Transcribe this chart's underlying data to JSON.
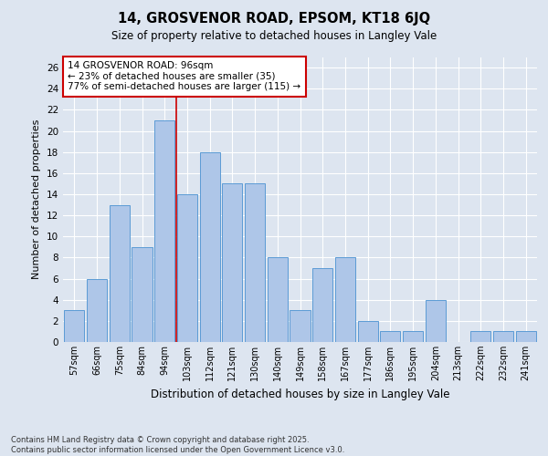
{
  "title1": "14, GROSVENOR ROAD, EPSOM, KT18 6JQ",
  "title2": "Size of property relative to detached houses in Langley Vale",
  "xlabel": "Distribution of detached houses by size in Langley Vale",
  "ylabel": "Number of detached properties",
  "categories": [
    "57sqm",
    "66sqm",
    "75sqm",
    "84sqm",
    "94sqm",
    "103sqm",
    "112sqm",
    "121sqm",
    "130sqm",
    "140sqm",
    "149sqm",
    "158sqm",
    "167sqm",
    "177sqm",
    "186sqm",
    "195sqm",
    "204sqm",
    "213sqm",
    "222sqm",
    "232sqm",
    "241sqm"
  ],
  "values": [
    3,
    6,
    13,
    9,
    21,
    14,
    18,
    15,
    15,
    8,
    3,
    7,
    8,
    2,
    1,
    1,
    4,
    0,
    1,
    1,
    1
  ],
  "bar_color": "#aec6e8",
  "bar_edge_color": "#5b9bd5",
  "vline_index": 4,
  "vline_color": "#cc0000",
  "annotation_box_text": "14 GROSVENOR ROAD: 96sqm\n← 23% of detached houses are smaller (35)\n77% of semi-detached houses are larger (115) →",
  "ylim": [
    0,
    27
  ],
  "yticks": [
    0,
    2,
    4,
    6,
    8,
    10,
    12,
    14,
    16,
    18,
    20,
    22,
    24,
    26
  ],
  "footer": "Contains HM Land Registry data © Crown copyright and database right 2025.\nContains public sector information licensed under the Open Government Licence v3.0.",
  "bg_color": "#dde5f0",
  "plot_bg_color": "#dde5f0",
  "grid_color": "#ffffff"
}
